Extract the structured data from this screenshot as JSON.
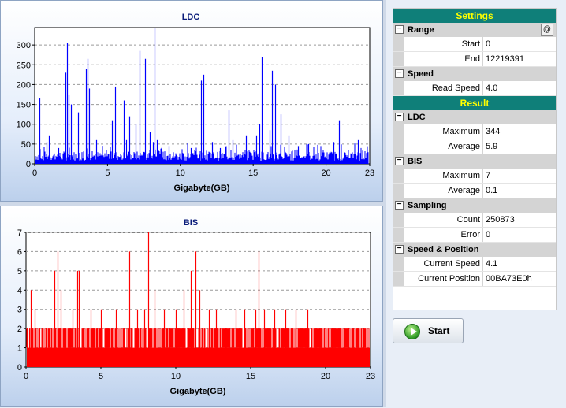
{
  "charts": {
    "ldc": {
      "title": "LDC",
      "xlabel": "Gigabyte(GB)",
      "xticks": [
        "0",
        "5",
        "10",
        "15",
        "20",
        "23"
      ],
      "yticks": [
        "0",
        "50",
        "100",
        "150",
        "200",
        "250",
        "300"
      ]
    },
    "bis": {
      "title": "BIS",
      "xlabel": "Gigabyte(GB)",
      "xticks": [
        "0",
        "5",
        "10",
        "15",
        "20",
        "23"
      ],
      "yticks": [
        "0",
        "1",
        "2",
        "3",
        "4",
        "5",
        "6",
        "7"
      ]
    }
  },
  "chart_data": [
    {
      "type": "bar",
      "title": "LDC",
      "xlabel": "Gigabyte(GB)",
      "ylabel": "",
      "xlim": [
        0,
        23
      ],
      "ylim": [
        0,
        344
      ],
      "color": "#0000ff",
      "spikes": [
        [
          0.35,
          165
        ],
        [
          0.8,
          55
        ],
        [
          0.95,
          70
        ],
        [
          1.6,
          40
        ],
        [
          2.1,
          230
        ],
        [
          2.2,
          305
        ],
        [
          2.35,
          175
        ],
        [
          2.5,
          150
        ],
        [
          3.0,
          130
        ],
        [
          3.5,
          240
        ],
        [
          3.6,
          265
        ],
        [
          3.75,
          190
        ],
        [
          4.2,
          60
        ],
        [
          5.3,
          110
        ],
        [
          5.5,
          195
        ],
        [
          6.1,
          160
        ],
        [
          6.3,
          60
        ],
        [
          6.5,
          120
        ],
        [
          6.9,
          100
        ],
        [
          7.2,
          285
        ],
        [
          7.6,
          265
        ],
        [
          7.9,
          80
        ],
        [
          8.1,
          55
        ],
        [
          8.2,
          344
        ],
        [
          8.4,
          60
        ],
        [
          9.2,
          45
        ],
        [
          10.7,
          40
        ],
        [
          11.4,
          210
        ],
        [
          11.6,
          225
        ],
        [
          12.2,
          55
        ],
        [
          12.7,
          40
        ],
        [
          13.3,
          135
        ],
        [
          13.6,
          60
        ],
        [
          14.5,
          70
        ],
        [
          15.2,
          70
        ],
        [
          15.4,
          100
        ],
        [
          15.6,
          270
        ],
        [
          16.1,
          85
        ],
        [
          16.3,
          235
        ],
        [
          16.5,
          200
        ],
        [
          16.9,
          125
        ],
        [
          17.4,
          70
        ],
        [
          18.1,
          45
        ],
        [
          18.8,
          50
        ],
        [
          20.5,
          55
        ],
        [
          20.9,
          110
        ],
        [
          22.2,
          60
        ]
      ],
      "baseline": "noise 5-25"
    },
    {
      "type": "bar",
      "title": "BIS",
      "xlabel": "Gigabyte(GB)",
      "ylabel": "",
      "xlim": [
        0,
        23
      ],
      "ylim": [
        0,
        7
      ],
      "color": "#ff0000",
      "spikes": [
        [
          0.2,
          2
        ],
        [
          0.3,
          4
        ],
        [
          0.6,
          3
        ],
        [
          0.9,
          2
        ],
        [
          1.3,
          2
        ],
        [
          1.9,
          5
        ],
        [
          2.1,
          6
        ],
        [
          2.3,
          4
        ],
        [
          2.6,
          2
        ],
        [
          3.1,
          3
        ],
        [
          3.4,
          5
        ],
        [
          3.55,
          5
        ],
        [
          4.3,
          3
        ],
        [
          5.0,
          3
        ],
        [
          6.0,
          3
        ],
        [
          6.5,
          2
        ],
        [
          6.9,
          6
        ],
        [
          7.4,
          3
        ],
        [
          7.9,
          3
        ],
        [
          8.15,
          7
        ],
        [
          8.6,
          4
        ],
        [
          9.2,
          3
        ],
        [
          10.0,
          3
        ],
        [
          10.5,
          4
        ],
        [
          11.0,
          5
        ],
        [
          11.3,
          6
        ],
        [
          11.6,
          4
        ],
        [
          12.2,
          3
        ],
        [
          12.7,
          3
        ],
        [
          13.3,
          2
        ],
        [
          14.0,
          3
        ],
        [
          14.6,
          3
        ],
        [
          15.3,
          3
        ],
        [
          15.5,
          6
        ],
        [
          15.9,
          3
        ],
        [
          16.6,
          3
        ],
        [
          17.3,
          3
        ],
        [
          18.0,
          3
        ],
        [
          18.8,
          3
        ],
        [
          20.4,
          2
        ],
        [
          21.5,
          2
        ],
        [
          22.5,
          2
        ]
      ],
      "baseline": "solid 0-1 with frequent 2"
    }
  ],
  "panel": {
    "settings_header": "Settings",
    "range": {
      "label": "Range",
      "at": "@",
      "start_key": "Start",
      "start_val": "0",
      "end_key": "End",
      "end_val": "12219391"
    },
    "speed": {
      "label": "Speed",
      "read_key": "Read Speed",
      "read_val": "4.0"
    },
    "result_header": "Result",
    "ldc": {
      "label": "LDC",
      "max_key": "Maximum",
      "max_val": "344",
      "avg_key": "Average",
      "avg_val": "5.9"
    },
    "bis": {
      "label": "BIS",
      "max_key": "Maximum",
      "max_val": "7",
      "avg_key": "Average",
      "avg_val": "0.1"
    },
    "sampling": {
      "label": "Sampling",
      "count_key": "Count",
      "count_val": "250873",
      "error_key": "Error",
      "error_val": "0"
    },
    "speedpos": {
      "label": "Speed & Position",
      "cs_key": "Current Speed",
      "cs_val": "4.1",
      "cp_key": "Current Position",
      "cp_val": "00BA73E0h"
    },
    "toggle": "−"
  },
  "start_button": {
    "label": "Start"
  }
}
